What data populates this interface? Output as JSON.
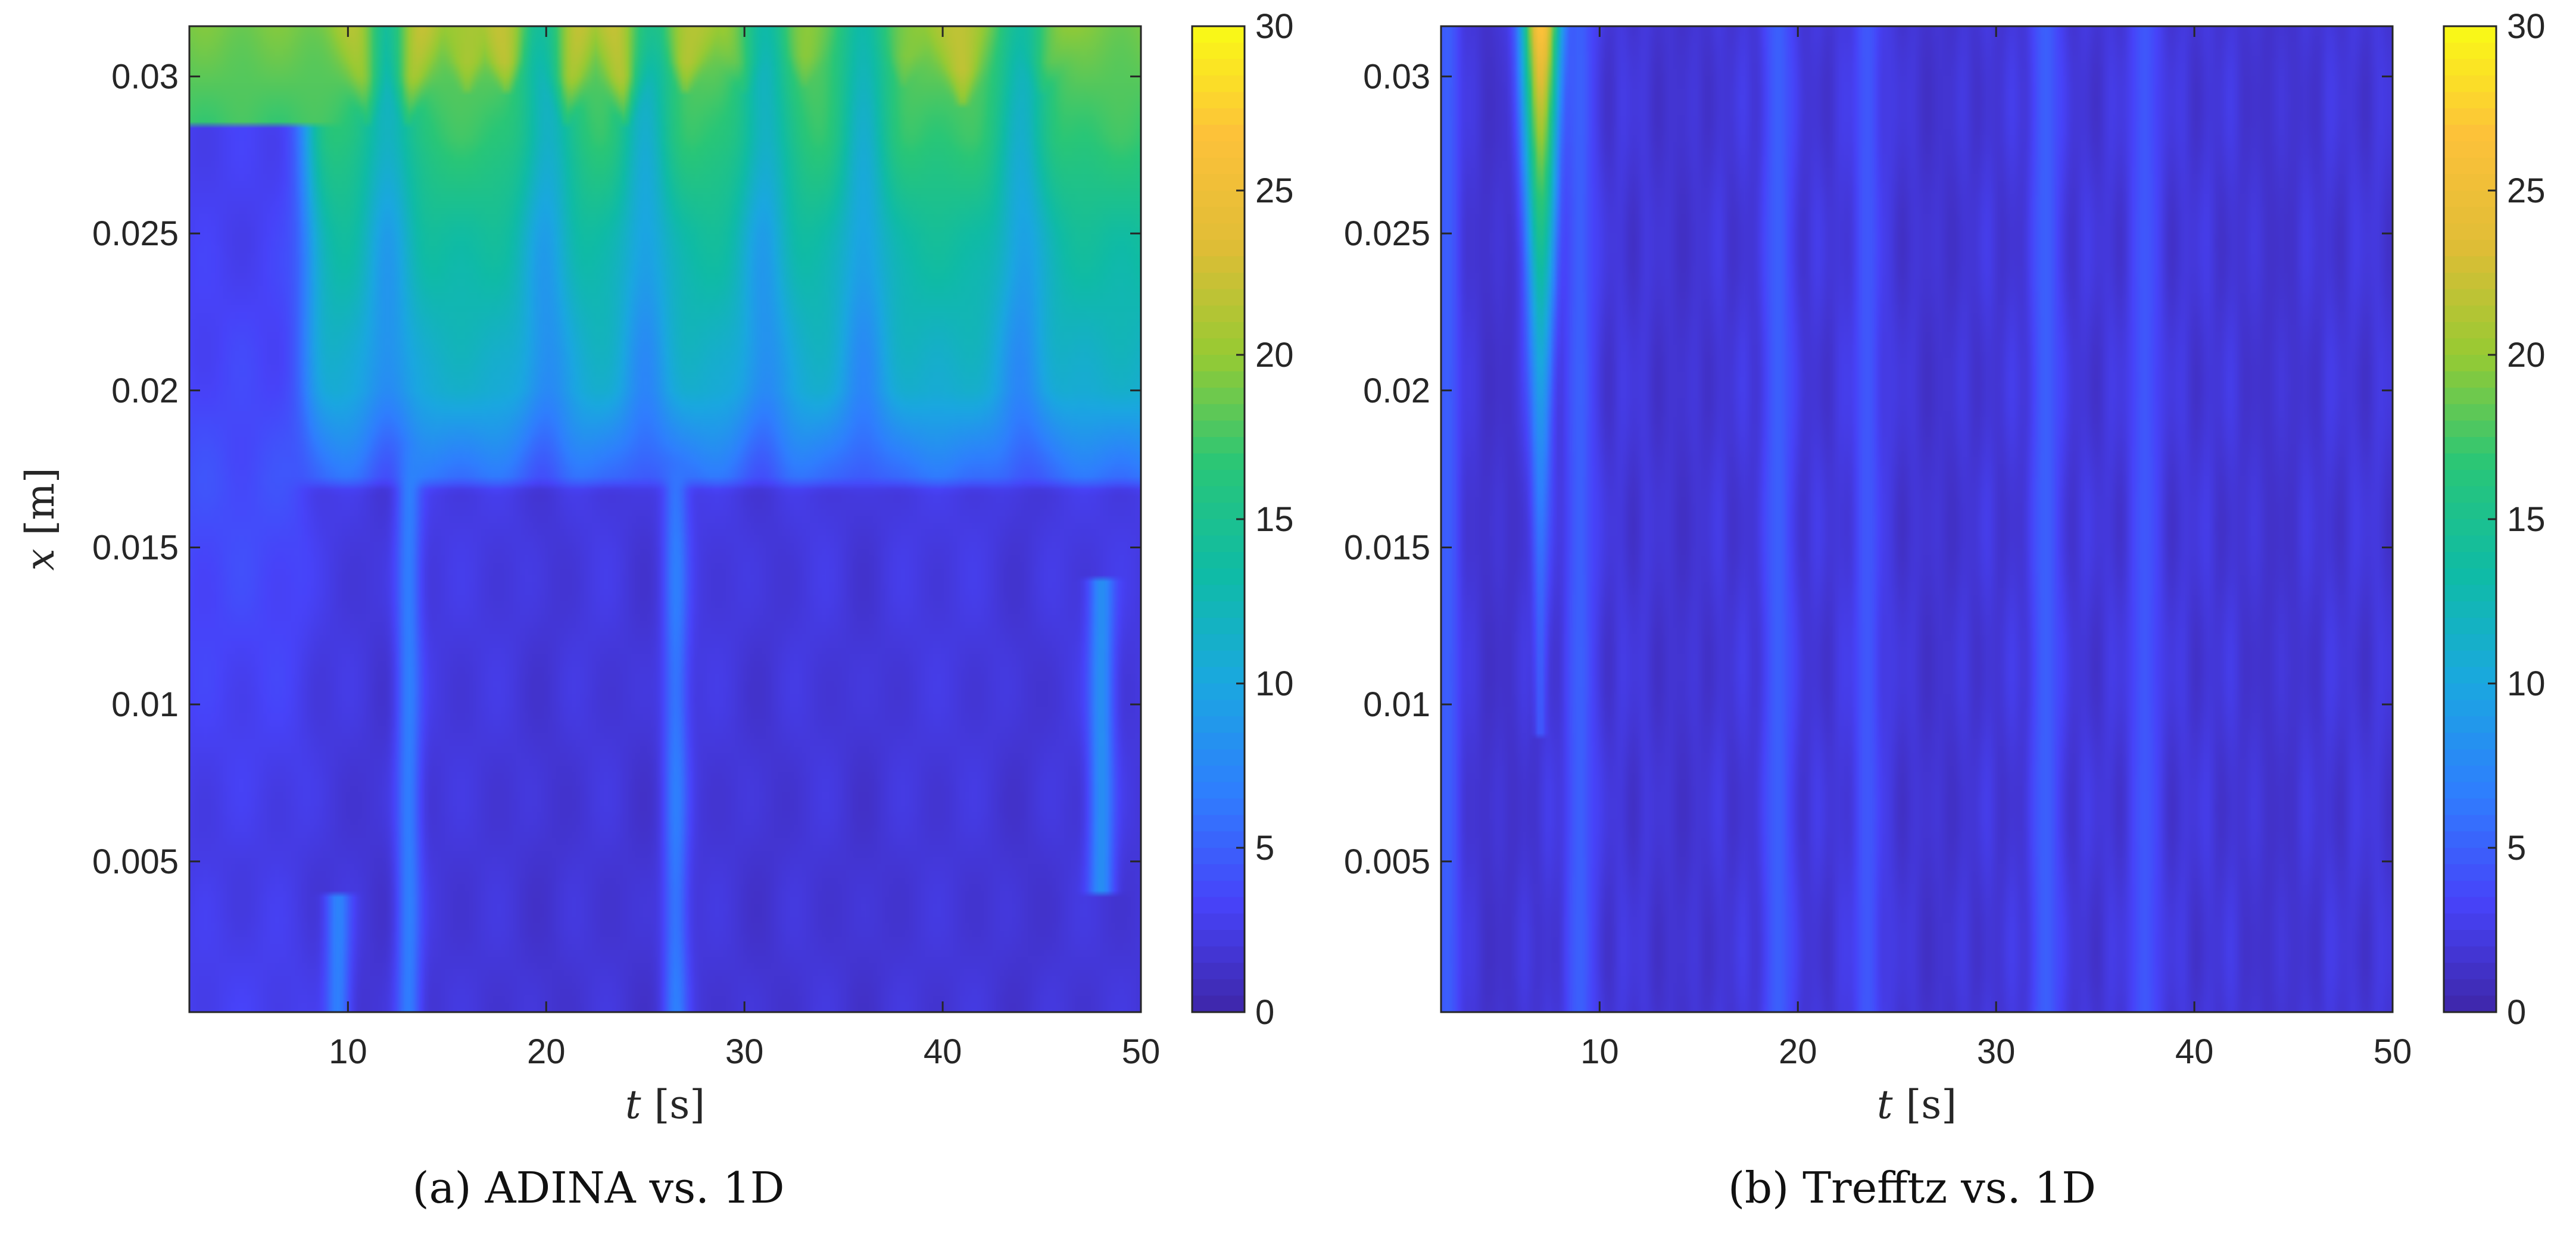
{
  "colormap": [
    "#3e26a8",
    "#4743f9",
    "#2f7efe",
    "#1aa7e0",
    "#0fbba6",
    "#29c677",
    "#97ca33",
    "#e0bd36",
    "#fdc13a",
    "#f9fb15"
  ],
  "chart_data": [
    {
      "type": "heatmap",
      "panel": "a",
      "caption": "(a) ADINA vs. 1D",
      "xlabel": "t",
      "xunit": "[s]",
      "ylabel": "x",
      "yunit": "[m]",
      "xlim": [
        2,
        50
      ],
      "ylim": [
        0.0002,
        0.0316
      ],
      "xticks": [
        10,
        20,
        30,
        40,
        50
      ],
      "xtick_labels": [
        "10",
        "20",
        "30",
        "40",
        "50"
      ],
      "yticks": [
        0.005,
        0.01,
        0.015,
        0.02,
        0.025,
        0.03
      ],
      "ytick_labels": [
        "0.005",
        "0.01",
        "0.015",
        "0.02",
        "0.025",
        "0.03"
      ],
      "colorbar": {
        "range": [
          0,
          30
        ],
        "ticks": [
          0,
          5,
          10,
          15,
          20,
          25,
          30
        ],
        "tick_labels": [
          "0",
          "5",
          "10",
          "15",
          "20",
          "25",
          "30"
        ]
      },
      "profile_x": [
        0.0002,
        0.005,
        0.0168,
        0.0172,
        0.02,
        0.025,
        0.028,
        0.0316
      ],
      "profile_before_t8": [
        3,
        2.5,
        4,
        4,
        3.5,
        3,
        3,
        3.5
      ],
      "profile_after_t8": [
        2,
        2,
        2.5,
        6,
        11,
        14,
        17,
        19
      ],
      "hot_spikes": [
        {
          "t": 11,
          "value": 23,
          "depth_to": 0.0285
        },
        {
          "t": 13,
          "value": 24,
          "depth_to": 0.0285
        },
        {
          "t": 16,
          "value": 21,
          "depth_to": 0.0295
        },
        {
          "t": 18,
          "value": 22,
          "depth_to": 0.0295
        },
        {
          "t": 21,
          "value": 24,
          "depth_to": 0.0285
        },
        {
          "t": 24,
          "value": 25,
          "depth_to": 0.0285
        },
        {
          "t": 27,
          "value": 22,
          "depth_to": 0.0295
        },
        {
          "t": 30,
          "value": 21,
          "depth_to": 0.0295
        },
        {
          "t": 33,
          "value": 20,
          "depth_to": 0.0298
        },
        {
          "t": 38,
          "value": 20,
          "depth_to": 0.0298
        },
        {
          "t": 41,
          "value": 22,
          "depth_to": 0.029
        },
        {
          "t": 45,
          "value": 21,
          "depth_to": 0.0295
        }
      ],
      "bright_streaks": [
        {
          "t": 9.5,
          "value": 7,
          "depth_from": 0.0002,
          "depth_to": 0.004
        },
        {
          "t": 13,
          "value": 8,
          "depth_from": 0.0002,
          "depth_to": 0.02
        },
        {
          "t": 26.5,
          "value": 7,
          "depth_from": 0.0002,
          "depth_to": 0.018
        },
        {
          "t": 48,
          "value": 8,
          "depth_from": 0.004,
          "depth_to": 0.014
        }
      ],
      "dark_bands": [
        {
          "t": 12,
          "value": 1
        },
        {
          "t": 20,
          "value": 1
        },
        {
          "t": 25,
          "value": 1
        },
        {
          "t": 31,
          "value": 1
        },
        {
          "t": 36,
          "value": 1
        },
        {
          "t": 44,
          "value": 1
        }
      ]
    },
    {
      "type": "heatmap",
      "panel": "b",
      "caption": "(b) Trefftz vs. 1D",
      "xlabel": "t",
      "xunit": "[s]",
      "xlim": [
        2,
        50
      ],
      "ylim": [
        0.0002,
        0.0316
      ],
      "xticks": [
        10,
        20,
        30,
        40,
        50
      ],
      "xtick_labels": [
        "10",
        "20",
        "30",
        "40",
        "50"
      ],
      "yticks": [
        0.005,
        0.01,
        0.015,
        0.02,
        0.025,
        0.03
      ],
      "ytick_labels": [
        "0.005",
        "0.01",
        "0.015",
        "0.02",
        "0.025",
        "0.03"
      ],
      "colorbar": {
        "range": [
          0,
          30
        ],
        "ticks": [
          0,
          5,
          10,
          15,
          20,
          25,
          30
        ],
        "tick_labels": [
          "0",
          "5",
          "10",
          "15",
          "20",
          "25",
          "30"
        ]
      },
      "base_value": 2,
      "plume": {
        "t": 7,
        "width_t": 1.4,
        "peak_value": 28,
        "depth_from": 0.009,
        "depth_to": 0.0316
      },
      "bright_streaks": [
        {
          "t": 2.3,
          "value": 5,
          "depth_from": 0.0002,
          "depth_to": 0.0316
        },
        {
          "t": 9,
          "value": 5,
          "depth_from": 0.0002,
          "depth_to": 0.0316
        },
        {
          "t": 19,
          "value": 5,
          "depth_from": 0.0002,
          "depth_to": 0.0316
        },
        {
          "t": 23.5,
          "value": 4.5,
          "depth_from": 0.0002,
          "depth_to": 0.0316
        },
        {
          "t": 32.5,
          "value": 5,
          "depth_from": 0.0002,
          "depth_to": 0.0316
        },
        {
          "t": 37.5,
          "value": 4.5,
          "depth_from": 0.0002,
          "depth_to": 0.0316
        }
      ],
      "dark_bands": [
        {
          "t": 4.8,
          "value": 0.8
        },
        {
          "t": 14,
          "value": 1
        },
        {
          "t": 27,
          "value": 1
        },
        {
          "t": 44,
          "value": 1
        }
      ]
    }
  ]
}
